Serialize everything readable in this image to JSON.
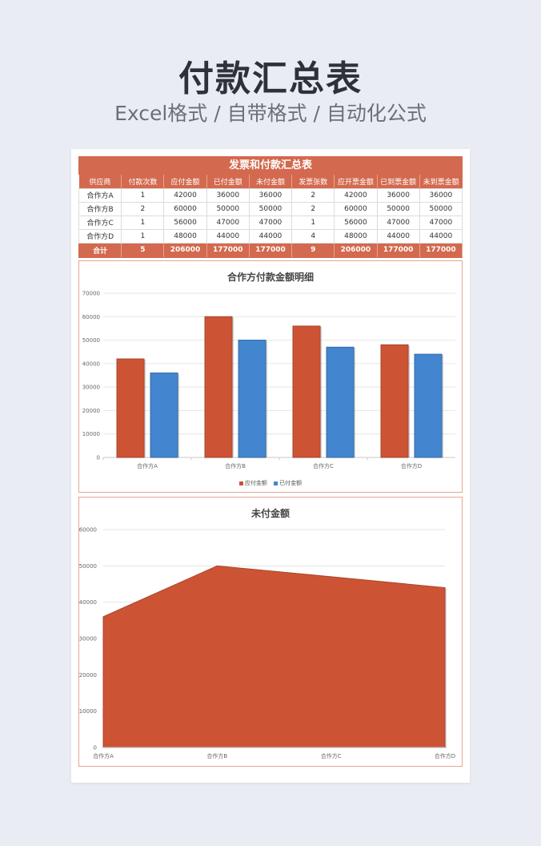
{
  "hero": {
    "title": "付款汇总表",
    "subtitle": "Excel格式 / 自带格式 / 自动化公式"
  },
  "table": {
    "title": "发票和付款汇总表",
    "headers": [
      "供应商",
      "付款次数",
      "应付金额",
      "已付金额",
      "未付金额",
      "发票张数",
      "应开票金额",
      "已到票金额",
      "未到票金额"
    ],
    "rows": [
      [
        "合作方A",
        "1",
        "42000",
        "36000",
        "36000",
        "2",
        "42000",
        "36000",
        "36000"
      ],
      [
        "合作方B",
        "2",
        "60000",
        "50000",
        "50000",
        "2",
        "60000",
        "50000",
        "50000"
      ],
      [
        "合作方C",
        "1",
        "56000",
        "47000",
        "47000",
        "1",
        "56000",
        "47000",
        "47000"
      ],
      [
        "合作方D",
        "1",
        "48000",
        "44000",
        "44000",
        "4",
        "48000",
        "44000",
        "44000"
      ]
    ],
    "total": [
      "合计",
      "5",
      "206000",
      "177000",
      "177000",
      "9",
      "206000",
      "177000",
      "177000"
    ]
  },
  "chart_data": [
    {
      "type": "bar",
      "title": "合作方付款金额明细",
      "categories": [
        "合作方A",
        "合作方B",
        "合作方C",
        "合作方D"
      ],
      "series": [
        {
          "name": "应付金额",
          "values": [
            42000,
            60000,
            56000,
            48000
          ],
          "color": "#cc5434"
        },
        {
          "name": "已付金额",
          "values": [
            36000,
            50000,
            47000,
            44000
          ],
          "color": "#4386cf"
        }
      ],
      "ylim": [
        0,
        70000
      ],
      "yticks": [
        "0",
        "10000",
        "20000",
        "30000",
        "40000",
        "50000",
        "60000",
        "70000"
      ],
      "legend": "bottom",
      "grid": true
    },
    {
      "type": "area",
      "title": "未付金额",
      "categories": [
        "合作方A",
        "合作方B",
        "合作方C",
        "合作方D"
      ],
      "values": [
        36000,
        50000,
        47000,
        44000
      ],
      "color": "#cc5434",
      "ylim": [
        0,
        60000
      ],
      "yticks": [
        "0",
        "10000",
        "20000",
        "30000",
        "40000",
        "50000",
        "60000"
      ],
      "grid": true
    }
  ]
}
